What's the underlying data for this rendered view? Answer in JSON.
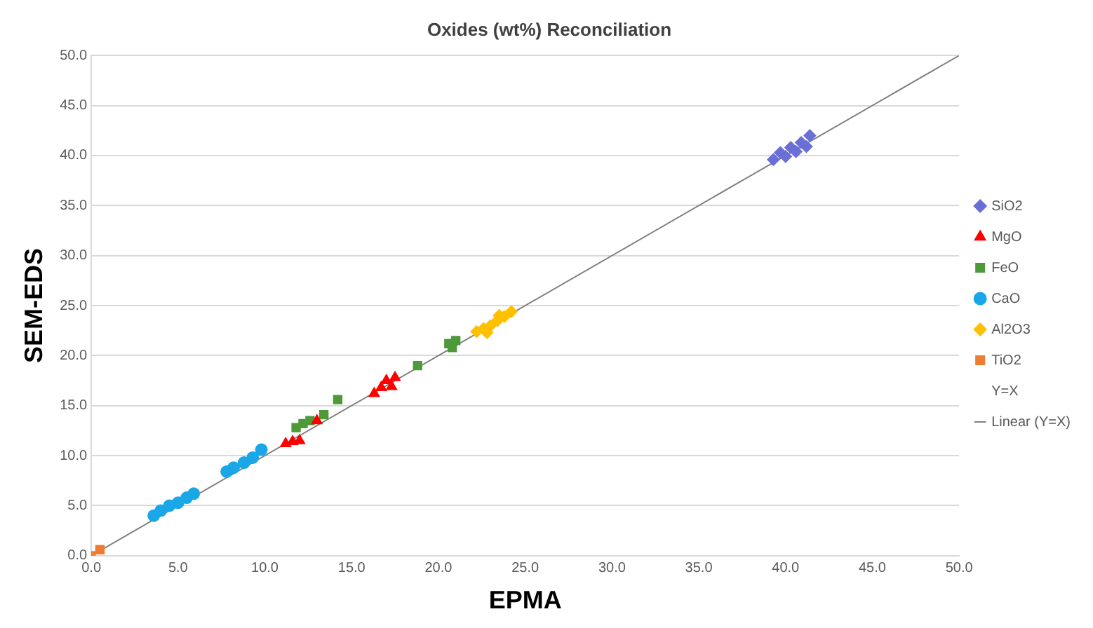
{
  "chart_data": {
    "type": "scatter",
    "title": "Oxides (wt%) Reconciliation",
    "xlabel": "EPMA",
    "ylabel": "SEM-EDS",
    "xlim": [
      0,
      50
    ],
    "ylim": [
      0,
      50
    ],
    "xticks": [
      {
        "value": 0,
        "label": "0.0"
      },
      {
        "value": 5,
        "label": "5.0"
      },
      {
        "value": 10,
        "label": "10.0"
      },
      {
        "value": 15,
        "label": "15.0"
      },
      {
        "value": 20,
        "label": "20.0"
      },
      {
        "value": 25,
        "label": "25.0"
      },
      {
        "value": 30,
        "label": "30.0"
      },
      {
        "value": 35,
        "label": "35.0"
      },
      {
        "value": 40,
        "label": "40.0"
      },
      {
        "value": 45,
        "label": "45.0"
      },
      {
        "value": 50,
        "label": "50.0"
      }
    ],
    "yticks": [
      {
        "value": 0,
        "label": "0.0"
      },
      {
        "value": 5,
        "label": "5.0"
      },
      {
        "value": 10,
        "label": "10.0"
      },
      {
        "value": 15,
        "label": "15.0"
      },
      {
        "value": 20,
        "label": "20.0"
      },
      {
        "value": 25,
        "label": "25.0"
      },
      {
        "value": 30,
        "label": "30.0"
      },
      {
        "value": 35,
        "label": "35.0"
      },
      {
        "value": 40,
        "label": "40.0"
      },
      {
        "value": 45,
        "label": "45.0"
      },
      {
        "value": 50,
        "label": "50.0"
      }
    ],
    "grid": "y",
    "legend": "right",
    "annotations": [
      "Y=X"
    ],
    "series": [
      {
        "name": "SiO2",
        "color": "#6a6fd6",
        "marker": "diamond",
        "x": [
          39.3,
          39.7,
          40.0,
          40.3,
          40.6,
          40.9,
          41.2,
          41.4
        ],
        "values": [
          39.6,
          40.3,
          39.9,
          40.8,
          40.4,
          41.3,
          40.9,
          42.0
        ]
      },
      {
        "name": "MgO",
        "color": "#ff0000",
        "marker": "triangle",
        "x": [
          11.2,
          11.6,
          12.0,
          13.0,
          16.3,
          16.7,
          17.0,
          17.3,
          17.5
        ],
        "values": [
          11.2,
          11.4,
          11.5,
          13.5,
          16.2,
          16.8,
          17.5,
          16.9,
          17.8
        ]
      },
      {
        "name": "FeO",
        "color": "#4e9a3a",
        "marker": "square",
        "x": [
          11.8,
          12.2,
          12.6,
          13.4,
          14.2,
          18.8,
          20.6,
          20.8,
          21.0
        ],
        "values": [
          12.8,
          13.2,
          13.5,
          14.1,
          15.6,
          19.0,
          21.2,
          20.8,
          21.5
        ]
      },
      {
        "name": "CaO",
        "color": "#1aa7e8",
        "marker": "circle",
        "x": [
          3.6,
          4.0,
          4.5,
          5.0,
          5.5,
          5.9,
          7.8,
          8.2,
          8.8,
          9.3,
          9.8
        ],
        "values": [
          4.0,
          4.5,
          5.0,
          5.3,
          5.8,
          6.2,
          8.4,
          8.8,
          9.3,
          9.8,
          10.6
        ]
      },
      {
        "name": "Al2O3",
        "color": "#ffc000",
        "marker": "diamond",
        "x": [
          22.2,
          22.6,
          22.8,
          23.0,
          23.4,
          23.5,
          23.8,
          24.2
        ],
        "values": [
          22.4,
          22.7,
          22.3,
          23.0,
          23.5,
          24.0,
          23.9,
          24.4
        ]
      },
      {
        "name": "TiO2",
        "color": "#ed7d31",
        "marker": "square",
        "x": [
          0.0,
          0.5
        ],
        "values": [
          0.0,
          0.6
        ]
      },
      {
        "name": "Linear (Y=X)",
        "type": "line",
        "color": "#808080",
        "marker": "none",
        "x": [
          0,
          50
        ],
        "values": [
          0,
          50
        ]
      }
    ]
  }
}
